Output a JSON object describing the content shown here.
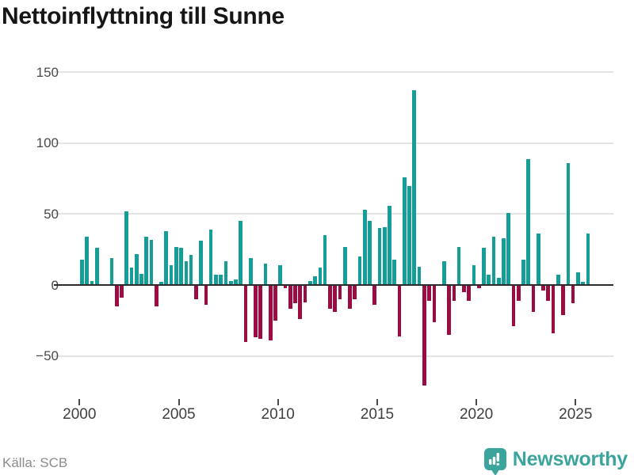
{
  "header": {
    "title": "Nettoinflyttning till Sunne"
  },
  "footer": {
    "source": "Källa: SCB",
    "brand": "Newsworthy"
  },
  "colors": {
    "positive": "#149e97",
    "negative": "#9b0c42",
    "grid": "#e4e4e4",
    "zero_line": "#2b2b2b",
    "axis_text": "#4a4a4a",
    "title_text": "#161616",
    "source_text": "#8b8b8b",
    "brand_teal": "#3aa49d"
  },
  "chart_data": {
    "type": "bar",
    "title": "Nettoinflyttning till Sunne",
    "xlabel": "",
    "ylabel": "",
    "ylim": [
      -75,
      155
    ],
    "grid": true,
    "x_tick_labels": [
      "2000",
      "2005",
      "2010",
      "2015",
      "2020",
      "2025"
    ],
    "y_tick_labels": [
      "150",
      "100",
      "50",
      "0",
      "−50"
    ],
    "y_tick_values": [
      150,
      100,
      50,
      0,
      -50
    ],
    "categories": [
      "2000 Q1",
      "2000 Q2",
      "2000 Q3",
      "2000 Q4",
      "2001 Q1",
      "2001 Q2",
      "2001 Q3",
      "2001 Q4",
      "2002 Q1",
      "2002 Q2",
      "2002 Q3",
      "2002 Q4",
      "2003 Q1",
      "2003 Q2",
      "2003 Q3",
      "2003 Q4",
      "2004 Q1",
      "2004 Q2",
      "2004 Q3",
      "2004 Q4",
      "2005 Q1",
      "2005 Q2",
      "2005 Q3",
      "2005 Q4",
      "2006 Q1",
      "2006 Q2",
      "2006 Q3",
      "2006 Q4",
      "2007 Q1",
      "2007 Q2",
      "2007 Q3",
      "2007 Q4",
      "2008 Q1",
      "2008 Q2",
      "2008 Q3",
      "2008 Q4",
      "2009 Q1",
      "2009 Q2",
      "2009 Q3",
      "2009 Q4",
      "2010 Q1",
      "2010 Q2",
      "2010 Q3",
      "2010 Q4",
      "2011 Q1",
      "2011 Q2",
      "2011 Q3",
      "2011 Q4",
      "2012 Q1",
      "2012 Q2",
      "2012 Q3",
      "2012 Q4",
      "2013 Q1",
      "2013 Q2",
      "2013 Q3",
      "2013 Q4",
      "2014 Q1",
      "2014 Q2",
      "2014 Q3",
      "2014 Q4",
      "2015 Q1",
      "2015 Q2",
      "2015 Q3",
      "2015 Q4",
      "2016 Q1",
      "2016 Q2",
      "2016 Q3",
      "2016 Q4",
      "2017 Q1",
      "2017 Q2",
      "2017 Q3",
      "2017 Q4",
      "2018 Q1",
      "2018 Q2",
      "2018 Q3",
      "2018 Q4",
      "2019 Q1",
      "2019 Q2",
      "2019 Q3",
      "2019 Q4",
      "2020 Q1",
      "2020 Q2",
      "2020 Q3",
      "2020 Q4",
      "2021 Q1",
      "2021 Q2",
      "2021 Q3",
      "2021 Q4",
      "2022 Q1",
      "2022 Q2",
      "2022 Q3",
      "2022 Q4",
      "2023 Q1",
      "2023 Q2",
      "2023 Q3",
      "2023 Q4",
      "2024 Q1",
      "2024 Q2",
      "2024 Q3",
      "2024 Q4",
      "2025 Q1",
      "2025 Q2",
      "2025 Q3"
    ],
    "values": [
      18,
      34,
      3,
      26,
      0,
      0,
      19,
      -15,
      -9,
      52,
      12,
      22,
      8,
      34,
      32,
      -15,
      2,
      38,
      14,
      27,
      26,
      17,
      21,
      -10,
      31,
      -14,
      39,
      7,
      7,
      17,
      3,
      4,
      45,
      -40,
      19,
      -37,
      -38,
      15,
      -39,
      -25,
      14,
      -2,
      -17,
      -13,
      -24,
      -12,
      3,
      6,
      12,
      35,
      -17,
      -19,
      -10,
      27,
      -17,
      -10,
      20,
      53,
      45,
      -14,
      40,
      41,
      56,
      18,
      -36,
      76,
      70,
      137,
      13,
      -71,
      -11,
      -26,
      0,
      17,
      -35,
      -11,
      27,
      -5,
      -11,
      14,
      -2,
      26,
      7,
      34,
      5,
      33,
      51,
      -29,
      -11,
      18,
      89,
      -19,
      36,
      -4,
      -11,
      -34,
      7,
      -21,
      86,
      -13,
      9,
      2,
      36
    ],
    "source": "Källa: SCB",
    "legend": null
  }
}
